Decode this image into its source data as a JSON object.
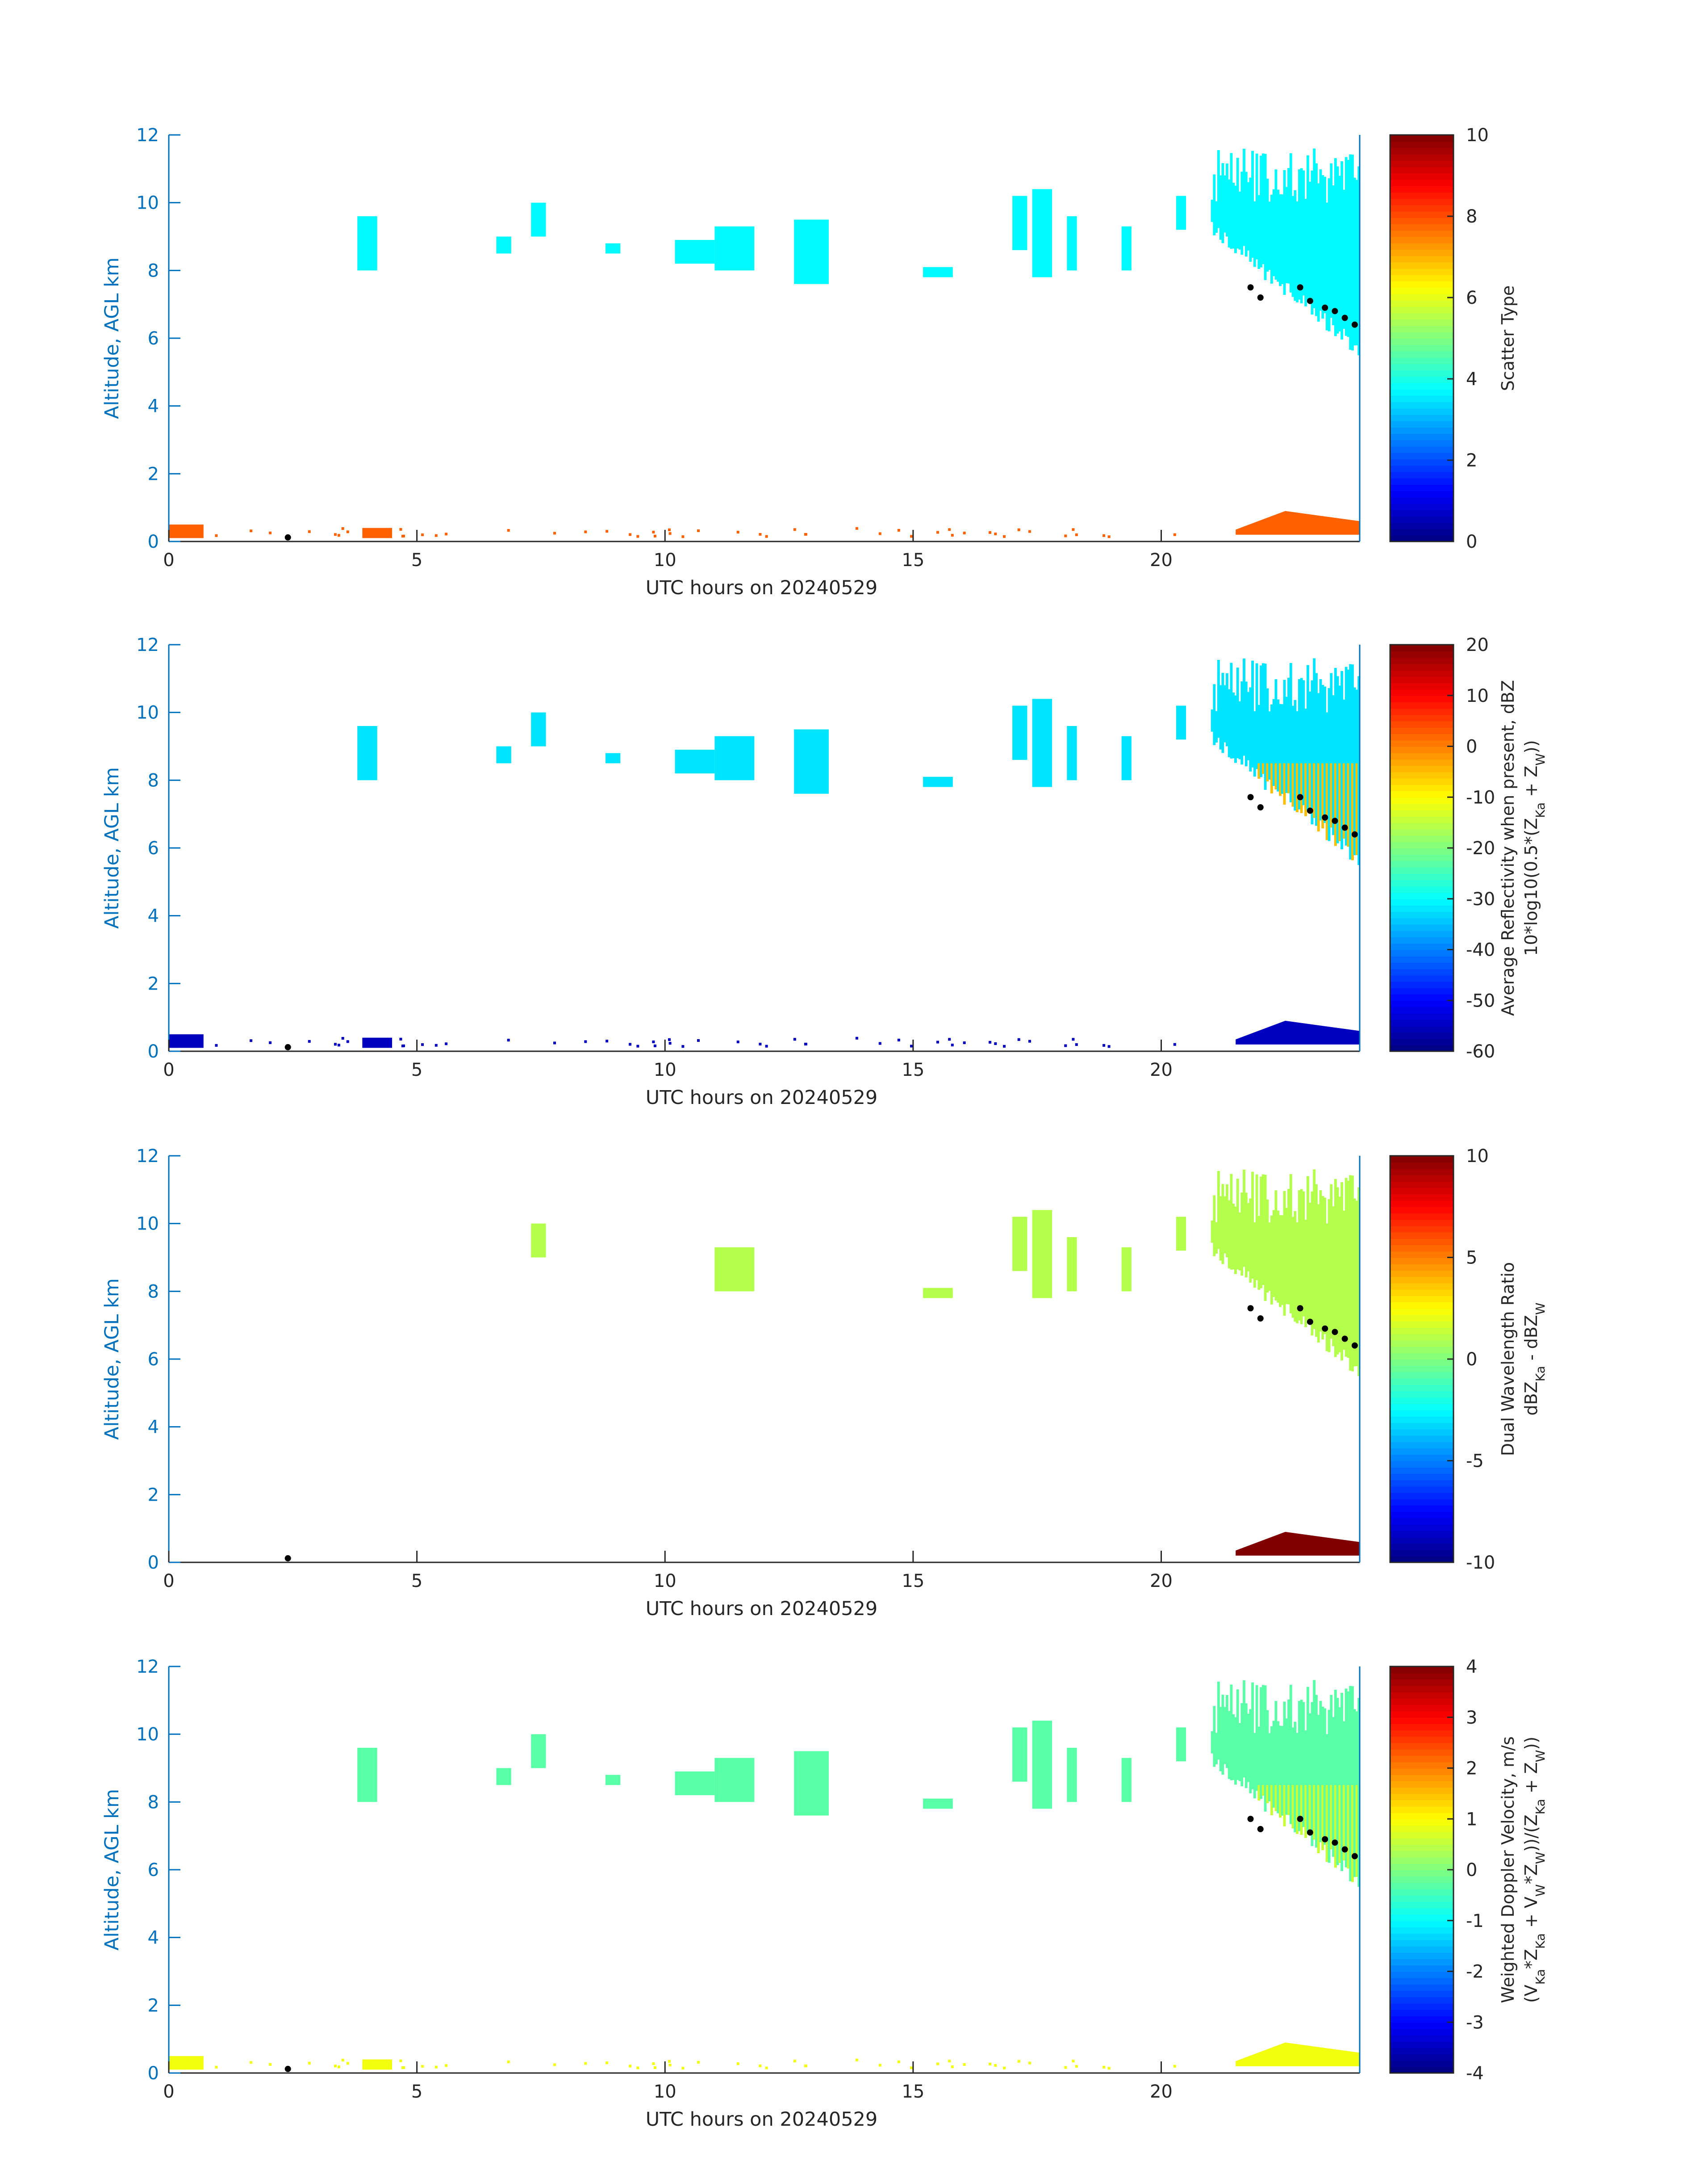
{
  "figure": {
    "x_ticks": [
      "0",
      "5",
      "10",
      "15",
      "20"
    ],
    "y_ticks": [
      "0",
      "2",
      "4",
      "6",
      "8",
      "10",
      "12"
    ],
    "x_axis_label": "UTC hours on 20240529",
    "y_axis_label": "Altitude, AGL km",
    "axis_color": "#0072bd"
  },
  "chart_data": [
    {
      "type": "heatmap",
      "xlabel": "UTC hours on 20240529",
      "ylabel": "Altitude, AGL km",
      "xlim": [
        0,
        24
      ],
      "ylim": [
        0,
        12
      ],
      "colorbar": {
        "lines": [
          "Scatter Type"
        ],
        "range": [
          0,
          10
        ],
        "ticks": [
          "10",
          "8",
          "6",
          "4",
          "2",
          "0"
        ],
        "colormap": "jet"
      },
      "cloud_value": 3.7,
      "low_layer_value": 7.8,
      "low_layer_scattered_value": 7.8
    },
    {
      "type": "heatmap",
      "xlabel": "UTC hours on 20240529",
      "ylabel": "Altitude, AGL km",
      "xlim": [
        0,
        24
      ],
      "ylim": [
        0,
        12
      ],
      "colorbar": {
        "lines": [
          "Average Reflectivity when present, dBZ",
          "10*log10(0.5*(Z_Ka + Z_W))"
        ],
        "range": [
          -60,
          20
        ],
        "ticks": [
          "20",
          "10",
          "0",
          "-10",
          "-20",
          "-30",
          "-40",
          "-50",
          "-60"
        ],
        "colormap": "jet"
      },
      "cloud_value": -32,
      "core_value": -5,
      "low_layer_value": -55
    },
    {
      "type": "heatmap",
      "xlabel": "UTC hours on 20240529",
      "ylabel": "Altitude, AGL km",
      "xlim": [
        0,
        24
      ],
      "ylim": [
        0,
        12
      ],
      "colorbar": {
        "lines": [
          "Dual Wavelength Ratio",
          "dBZ_Ka - dBZ_W"
        ],
        "range": [
          -10,
          10
        ],
        "ticks": [
          "10",
          "5",
          "0",
          "-5",
          "-10"
        ],
        "colormap": "jet"
      },
      "cloud_value": 1,
      "low_layer_value": 10
    },
    {
      "type": "heatmap",
      "xlabel": "UTC hours on 20240529",
      "ylabel": "Altitude, AGL km",
      "xlim": [
        0,
        24
      ],
      "ylim": [
        0,
        12
      ],
      "colorbar": {
        "lines": [
          "Weighted Doppler Velocity, m/s",
          "(V_Ka*Z_Ka + V_W*Z_W))/(Z_Ka + Z_W))"
        ],
        "range": [
          -4,
          4
        ],
        "ticks": [
          "4",
          "3",
          "2",
          "1",
          "0",
          "-1",
          "-2",
          "-3",
          "-4"
        ],
        "colormap": "jet"
      },
      "cloud_value": -0.3,
      "core_value": 0.6,
      "low_layer_value": 0.9
    }
  ]
}
